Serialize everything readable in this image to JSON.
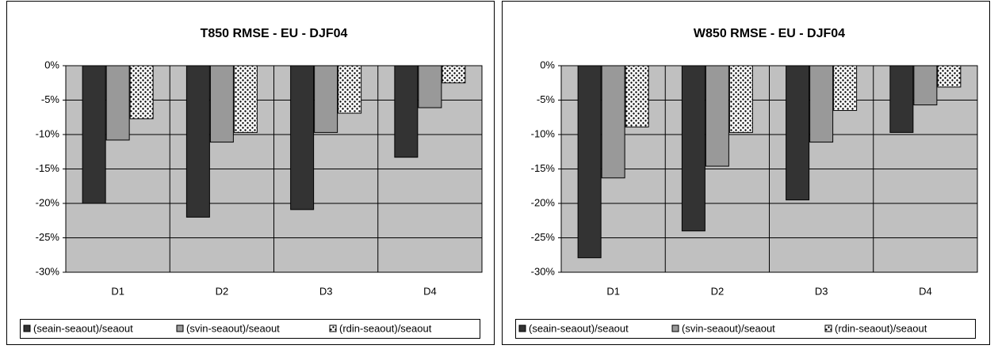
{
  "chart_data": [
    {
      "type": "bar",
      "title": "T850 RMSE - EU - DJF04",
      "categories": [
        "D1",
        "D2",
        "D3",
        "D4"
      ],
      "series": [
        {
          "name": "(seain-seaout)/seaout",
          "color": "#333333",
          "values": [
            -20,
            -22,
            -20.9,
            -13.3
          ]
        },
        {
          "name": "(svin-seaout)/seaout",
          "color": "#999999",
          "values": [
            -10.8,
            -11.1,
            -9.7,
            -6.1
          ]
        },
        {
          "name": "(rdin-seaout)/seaout",
          "color": "#ffffff",
          "pattern": "dots",
          "values": [
            -7.7,
            -9.7,
            -6.9,
            -2.5
          ]
        }
      ],
      "ylim": [
        -30,
        0
      ],
      "yticks": [
        {
          "value": 0,
          "label": "0%"
        },
        {
          "value": -5,
          "label": "-5%"
        },
        {
          "value": -10,
          "label": "-10%"
        },
        {
          "value": -15,
          "label": "-15%"
        },
        {
          "value": -20,
          "label": "-20%"
        },
        {
          "value": -25,
          "label": "-25%"
        },
        {
          "value": -30,
          "label": "-30%"
        }
      ],
      "grid": true,
      "legend": "bottom"
    },
    {
      "type": "bar",
      "title": "W850 RMSE - EU - DJF04",
      "categories": [
        "D1",
        "D2",
        "D3",
        "D4"
      ],
      "series": [
        {
          "name": "(seain-seaout)/seaout",
          "color": "#333333",
          "values": [
            -27.9,
            -24,
            -19.5,
            -9.7
          ]
        },
        {
          "name": "(svin-seaout)/seaout",
          "color": "#999999",
          "values": [
            -16.3,
            -14.6,
            -11.1,
            -5.7
          ]
        },
        {
          "name": "(rdin-seaout)/seaout",
          "color": "#ffffff",
          "pattern": "dots",
          "values": [
            -8.9,
            -9.7,
            -6.5,
            -3.1
          ]
        }
      ],
      "ylim": [
        -30,
        0
      ],
      "yticks": [
        {
          "value": 0,
          "label": "0%"
        },
        {
          "value": -5,
          "label": "-5%"
        },
        {
          "value": -10,
          "label": "-10%"
        },
        {
          "value": -15,
          "label": "-15%"
        },
        {
          "value": -20,
          "label": "-20%"
        },
        {
          "value": -25,
          "label": "-25%"
        },
        {
          "value": -30,
          "label": "-30%"
        }
      ],
      "grid": true,
      "legend": "bottom"
    }
  ]
}
